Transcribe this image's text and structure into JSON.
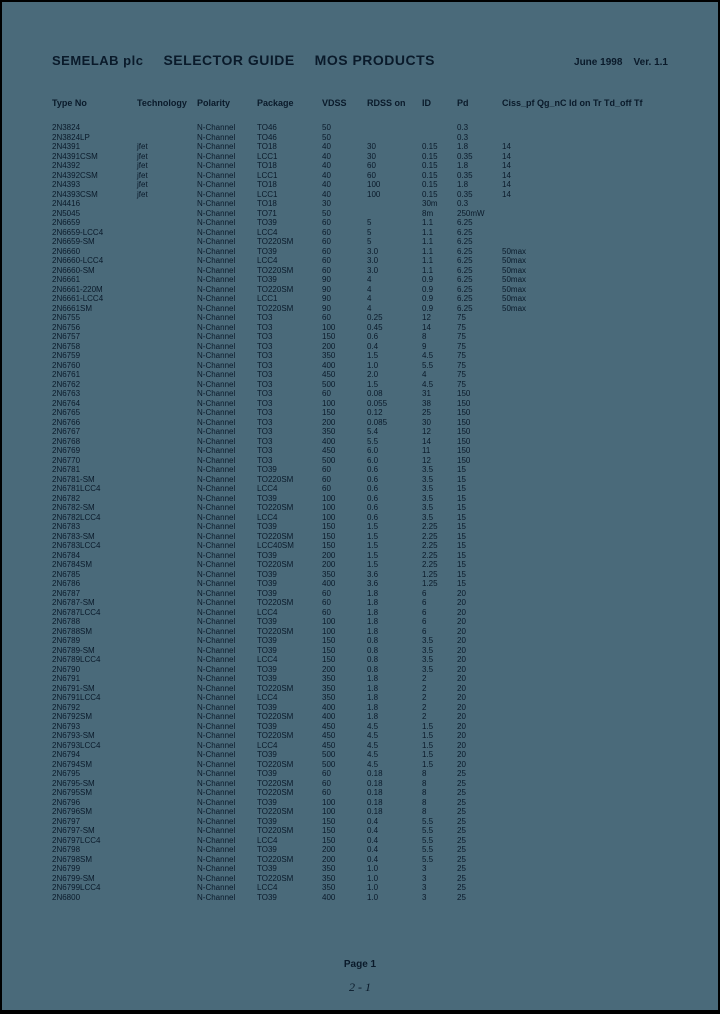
{
  "header": {
    "company": "SEMELAB plc",
    "guide": "SELECTOR GUIDE",
    "products": "MOS PRODUCTS",
    "date": "June 1998",
    "ver": "Ver. 1.1"
  },
  "columns": [
    "Type No",
    "Technology",
    "Polarity",
    "Package",
    "VDSS",
    "RDSS on",
    "ID",
    "Pd",
    "Ciss_pf  Qg_nC  Id on  Tr  Td_off  Tf"
  ],
  "rows": [
    [
      "2N3824",
      "",
      "N-Channel",
      "TO46",
      "50",
      "",
      "",
      "0.3",
      ""
    ],
    [
      "2N3824LP",
      "",
      "N-Channel",
      "TO46",
      "50",
      "",
      "",
      "0.3",
      ""
    ],
    [
      "2N4391",
      "jfet",
      "N-Channel",
      "TO18",
      "40",
      "30",
      "0.15",
      "1.8",
      "14"
    ],
    [
      "2N4391CSM",
      "jfet",
      "N-Channel",
      "LCC1",
      "40",
      "30",
      "0.15",
      "0.35",
      "14"
    ],
    [
      "2N4392",
      "jfet",
      "N-Channel",
      "TO18",
      "40",
      "60",
      "0.15",
      "1.8",
      "14"
    ],
    [
      "2N4392CSM",
      "jfet",
      "N-Channel",
      "LCC1",
      "40",
      "60",
      "0.15",
      "0.35",
      "14"
    ],
    [
      "2N4393",
      "jfet",
      "N-Channel",
      "TO18",
      "40",
      "100",
      "0.15",
      "1.8",
      "14"
    ],
    [
      "2N4393CSM",
      "jfet",
      "N-Channel",
      "LCC1",
      "40",
      "100",
      "0.15",
      "0.35",
      "14"
    ],
    [
      "2N4416",
      "",
      "N-Channel",
      "TO18",
      "30",
      "",
      "30m",
      "0.3",
      ""
    ],
    [
      "2N5045",
      "",
      "N-Channel",
      "TO71",
      "50",
      "",
      "8m",
      "250mW",
      ""
    ],
    [
      "2N6659",
      "",
      "N-Channel",
      "TO39",
      "60",
      "5",
      "1.1",
      "6.25",
      ""
    ],
    [
      "2N6659-LCC4",
      "",
      "N-Channel",
      "LCC4",
      "60",
      "5",
      "1.1",
      "6.25",
      ""
    ],
    [
      "2N6659-SM",
      "",
      "N-Channel",
      "TO220SM",
      "60",
      "5",
      "1.1",
      "6.25",
      ""
    ],
    [
      "2N6660",
      "",
      "N-Channel",
      "TO39",
      "60",
      "3.0",
      "1.1",
      "6.25",
      "50max"
    ],
    [
      "2N6660-LCC4",
      "",
      "N-Channel",
      "LCC4",
      "60",
      "3.0",
      "1.1",
      "6.25",
      "50max"
    ],
    [
      "2N6660-SM",
      "",
      "N-Channel",
      "TO220SM",
      "60",
      "3.0",
      "1.1",
      "6.25",
      "50max"
    ],
    [
      "2N6661",
      "",
      "N-Channel",
      "TO39",
      "90",
      "4",
      "0.9",
      "6.25",
      "50max"
    ],
    [
      "2N6661-220M",
      "",
      "N-Channel",
      "TO220SM",
      "90",
      "4",
      "0.9",
      "6.25",
      "50max"
    ],
    [
      "2N6661-LCC4",
      "",
      "N-Channel",
      "LCC1",
      "90",
      "4",
      "0.9",
      "6.25",
      "50max"
    ],
    [
      "2N6661SM",
      "",
      "N-Channel",
      "TO220SM",
      "90",
      "4",
      "0.9",
      "6.25",
      "50max"
    ],
    [
      "2N6755",
      "",
      "N-Channel",
      "TO3",
      "60",
      "0.25",
      "12",
      "75",
      ""
    ],
    [
      "2N6756",
      "",
      "N-Channel",
      "TO3",
      "100",
      "0.45",
      "14",
      "75",
      ""
    ],
    [
      "2N6757",
      "",
      "N-Channel",
      "TO3",
      "150",
      "0.6",
      "8",
      "75",
      ""
    ],
    [
      "2N6758",
      "",
      "N-Channel",
      "TO3",
      "200",
      "0.4",
      "9",
      "75",
      ""
    ],
    [
      "2N6759",
      "",
      "N-Channel",
      "TO3",
      "350",
      "1.5",
      "4.5",
      "75",
      ""
    ],
    [
      "2N6760",
      "",
      "N-Channel",
      "TO3",
      "400",
      "1.0",
      "5.5",
      "75",
      ""
    ],
    [
      "2N6761",
      "",
      "N-Channel",
      "TO3",
      "450",
      "2.0",
      "4",
      "75",
      ""
    ],
    [
      "2N6762",
      "",
      "N-Channel",
      "TO3",
      "500",
      "1.5",
      "4.5",
      "75",
      ""
    ],
    [
      "2N6763",
      "",
      "N-Channel",
      "TO3",
      "60",
      "0.08",
      "31",
      "150",
      ""
    ],
    [
      "2N6764",
      "",
      "N-Channel",
      "TO3",
      "100",
      "0.055",
      "38",
      "150",
      ""
    ],
    [
      "2N6765",
      "",
      "N-Channel",
      "TO3",
      "150",
      "0.12",
      "25",
      "150",
      ""
    ],
    [
      "2N6766",
      "",
      "N-Channel",
      "TO3",
      "200",
      "0.085",
      "30",
      "150",
      ""
    ],
    [
      "2N6767",
      "",
      "N-Channel",
      "TO3",
      "350",
      "5.4",
      "12",
      "150",
      ""
    ],
    [
      "2N6768",
      "",
      "N-Channel",
      "TO3",
      "400",
      "5.5",
      "14",
      "150",
      ""
    ],
    [
      "2N6769",
      "",
      "N-Channel",
      "TO3",
      "450",
      "6.0",
      "11",
      "150",
      ""
    ],
    [
      "2N6770",
      "",
      "N-Channel",
      "TO3",
      "500",
      "6.0",
      "12",
      "150",
      ""
    ],
    [
      "2N6781",
      "",
      "N-Channel",
      "TO39",
      "60",
      "0.6",
      "3.5",
      "15",
      ""
    ],
    [
      "2N6781-SM",
      "",
      "N-Channel",
      "TO220SM",
      "60",
      "0.6",
      "3.5",
      "15",
      ""
    ],
    [
      "2N6781LCC4",
      "",
      "N-Channel",
      "LCC4",
      "60",
      "0.6",
      "3.5",
      "15",
      ""
    ],
    [
      "2N6782",
      "",
      "N-Channel",
      "TO39",
      "100",
      "0.6",
      "3.5",
      "15",
      ""
    ],
    [
      "2N6782-SM",
      "",
      "N-Channel",
      "TO220SM",
      "100",
      "0.6",
      "3.5",
      "15",
      ""
    ],
    [
      "2N6782LCC4",
      "",
      "N-Channel",
      "LCC4",
      "100",
      "0.6",
      "3.5",
      "15",
      ""
    ],
    [
      "2N6783",
      "",
      "N-Channel",
      "TO39",
      "150",
      "1.5",
      "2.25",
      "15",
      ""
    ],
    [
      "2N6783-SM",
      "",
      "N-Channel",
      "TO220SM",
      "150",
      "1.5",
      "2.25",
      "15",
      ""
    ],
    [
      "2N6783LCC4",
      "",
      "N-Channel",
      "LCC40SM",
      "150",
      "1.5",
      "2.25",
      "15",
      ""
    ],
    [
      "2N6784",
      "",
      "N-Channel",
      "TO39",
      "200",
      "1.5",
      "2.25",
      "15",
      ""
    ],
    [
      "2N6784SM",
      "",
      "N-Channel",
      "TO220SM",
      "200",
      "1.5",
      "2.25",
      "15",
      ""
    ],
    [
      "2N6785",
      "",
      "N-Channel",
      "TO39",
      "350",
      "3.6",
      "1.25",
      "15",
      ""
    ],
    [
      "2N6786",
      "",
      "N-Channel",
      "TO39",
      "400",
      "3.6",
      "1.25",
      "15",
      ""
    ],
    [
      "2N6787",
      "",
      "N-Channel",
      "TO39",
      "60",
      "1.8",
      "6",
      "20",
      ""
    ],
    [
      "2N6787-SM",
      "",
      "N-Channel",
      "TO220SM",
      "60",
      "1.8",
      "6",
      "20",
      ""
    ],
    [
      "2N6787LCC4",
      "",
      "N-Channel",
      "LCC4",
      "60",
      "1.8",
      "6",
      "20",
      ""
    ],
    [
      "2N6788",
      "",
      "N-Channel",
      "TO39",
      "100",
      "1.8",
      "6",
      "20",
      ""
    ],
    [
      "2N6788SM",
      "",
      "N-Channel",
      "TO220SM",
      "100",
      "1.8",
      "6",
      "20",
      ""
    ],
    [
      "2N6789",
      "",
      "N-Channel",
      "TO39",
      "150",
      "0.8",
      "3.5",
      "20",
      ""
    ],
    [
      "2N6789-SM",
      "",
      "N-Channel",
      "TO39",
      "150",
      "0.8",
      "3.5",
      "20",
      ""
    ],
    [
      "2N6789LCC4",
      "",
      "N-Channel",
      "LCC4",
      "150",
      "0.8",
      "3.5",
      "20",
      ""
    ],
    [
      "2N6790",
      "",
      "N-Channel",
      "TO39",
      "200",
      "0.8",
      "3.5",
      "20",
      ""
    ],
    [
      "2N6791",
      "",
      "N-Channel",
      "TO39",
      "350",
      "1.8",
      "2",
      "20",
      ""
    ],
    [
      "2N6791-SM",
      "",
      "N-Channel",
      "TO220SM",
      "350",
      "1.8",
      "2",
      "20",
      ""
    ],
    [
      "2N6791LCC4",
      "",
      "N-Channel",
      "LCC4",
      "350",
      "1.8",
      "2",
      "20",
      ""
    ],
    [
      "2N6792",
      "",
      "N-Channel",
      "TO39",
      "400",
      "1.8",
      "2",
      "20",
      ""
    ],
    [
      "2N6792SM",
      "",
      "N-Channel",
      "TO220SM",
      "400",
      "1.8",
      "2",
      "20",
      ""
    ],
    [
      "2N6793",
      "",
      "N-Channel",
      "TO39",
      "450",
      "4.5",
      "1.5",
      "20",
      ""
    ],
    [
      "2N6793-SM",
      "",
      "N-Channel",
      "TO220SM",
      "450",
      "4.5",
      "1.5",
      "20",
      ""
    ],
    [
      "2N6793LCC4",
      "",
      "N-Channel",
      "LCC4",
      "450",
      "4.5",
      "1.5",
      "20",
      ""
    ],
    [
      "2N6794",
      "",
      "N-Channel",
      "TO39",
      "500",
      "4.5",
      "1.5",
      "20",
      ""
    ],
    [
      "2N6794SM",
      "",
      "N-Channel",
      "TO220SM",
      "500",
      "4.5",
      "1.5",
      "20",
      ""
    ],
    [
      "2N6795",
      "",
      "N-Channel",
      "TO39",
      "60",
      "0.18",
      "8",
      "25",
      ""
    ],
    [
      "2N6795-SM",
      "",
      "N-Channel",
      "TO220SM",
      "60",
      "0.18",
      "8",
      "25",
      ""
    ],
    [
      "2N6795SM",
      "",
      "N-Channel",
      "TO220SM",
      "60",
      "0.18",
      "8",
      "25",
      ""
    ],
    [
      "2N6796",
      "",
      "N-Channel",
      "TO39",
      "100",
      "0.18",
      "8",
      "25",
      ""
    ],
    [
      "2N6796SM",
      "",
      "N-Channel",
      "TO220SM",
      "100",
      "0.18",
      "8",
      "25",
      ""
    ],
    [
      "2N6797",
      "",
      "N-Channel",
      "TO39",
      "150",
      "0.4",
      "5.5",
      "25",
      ""
    ],
    [
      "2N6797-SM",
      "",
      "N-Channel",
      "TO220SM",
      "150",
      "0.4",
      "5.5",
      "25",
      ""
    ],
    [
      "2N6797LCC4",
      "",
      "N-Channel",
      "LCC4",
      "150",
      "0.4",
      "5.5",
      "25",
      ""
    ],
    [
      "2N6798",
      "",
      "N-Channel",
      "TO39",
      "200",
      "0.4",
      "5.5",
      "25",
      ""
    ],
    [
      "2N6798SM",
      "",
      "N-Channel",
      "TO220SM",
      "200",
      "0.4",
      "5.5",
      "25",
      ""
    ],
    [
      "2N6799",
      "",
      "N-Channel",
      "TO39",
      "350",
      "1.0",
      "3",
      "25",
      ""
    ],
    [
      "2N6799-SM",
      "",
      "N-Channel",
      "TO220SM",
      "350",
      "1.0",
      "3",
      "25",
      ""
    ],
    [
      "2N6799LCC4",
      "",
      "N-Channel",
      "LCC4",
      "350",
      "1.0",
      "3",
      "25",
      ""
    ],
    [
      "2N6800",
      "",
      "N-Channel",
      "TO39",
      "400",
      "1.0",
      "3",
      "25",
      ""
    ]
  ],
  "footer": "Page 1",
  "handwrite": "2 - 1"
}
